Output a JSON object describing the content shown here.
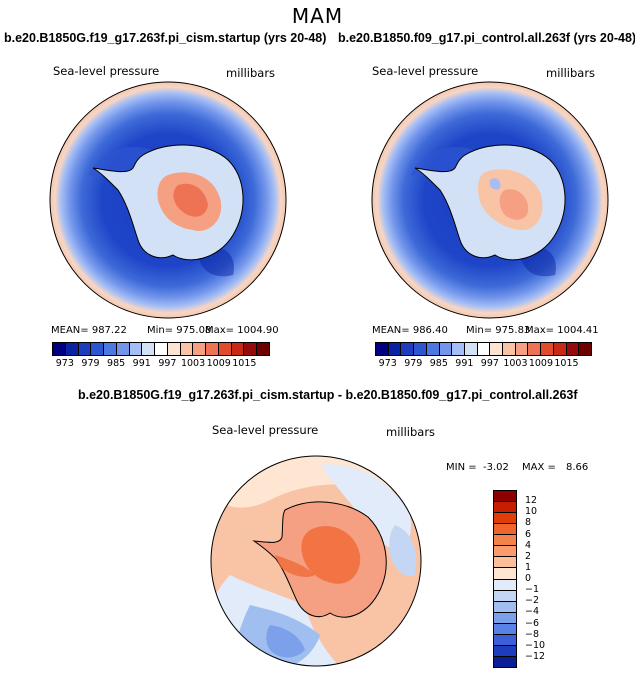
{
  "season": "MAM",
  "panels": [
    {
      "title": "b.e20.B1850G.f19_g17.263f.pi_cism.startup (yrs 20-48)",
      "variable": "Sea-level pressure",
      "units": "millibars",
      "mean_label": "MEAN= 987.22",
      "min_label": "Min= 975.08",
      "max_label": "Max= 1004.90"
    },
    {
      "title": "b.e20.B1850.f09_g17.pi_control.all.263f (yrs 20-48)",
      "variable": "Sea-level pressure",
      "units": "millibars",
      "mean_label": "MEAN= 986.40",
      "min_label": "Min= 975.83",
      "max_label": "Max= 1004.41"
    }
  ],
  "abs_colorbar": {
    "ticks": [
      "973",
      "979",
      "985",
      "991",
      "997",
      "1003",
      "1009",
      "1015"
    ],
    "colors": [
      "#000080",
      "#0a23a3",
      "#1e3cbe",
      "#2d55d2",
      "#4b78e1",
      "#7396eb",
      "#a5bef5",
      "#d2e1f5",
      "#ffffff",
      "#fde3d2",
      "#f9c3a5",
      "#f5a082",
      "#ee7355",
      "#e34b2d",
      "#c82814",
      "#960a0a",
      "#6e0000"
    ]
  },
  "diff": {
    "title": "b.e20.B1850G.f19_g17.263f.pi_cism.startup - b.e20.B1850.f09_g17.pi_control.all.263f",
    "variable": "Sea-level pressure",
    "units": "millibars",
    "min_label": "MIN =",
    "min_value": "-3.02",
    "max_label": "MAX =",
    "max_value": "8.66",
    "ticks": [
      "12",
      "10",
      "8",
      "6",
      "4",
      "2",
      "1",
      "0",
      "−1",
      "−2",
      "−4",
      "−6",
      "−8",
      "−10",
      "−12"
    ],
    "colors": [
      "#8c0000",
      "#c81e00",
      "#e13c0a",
      "#f0642d",
      "#f5824b",
      "#fa9b6e",
      "#fdbe9b",
      "#fee6d2",
      "#e1ebfa",
      "#c3d7f5",
      "#a0bef0",
      "#7da0eb",
      "#5a82e6",
      "#3c5fd7",
      "#1e3cbe",
      "#0a1e96"
    ]
  }
}
